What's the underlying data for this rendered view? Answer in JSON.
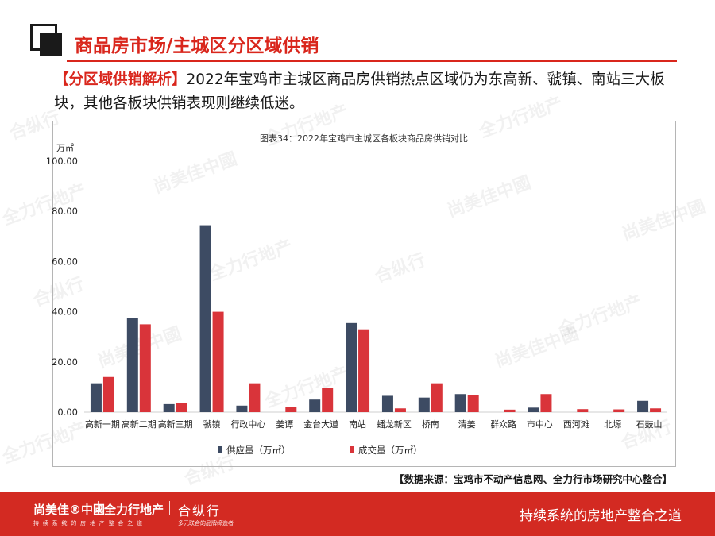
{
  "header": {
    "title": "商品房市场/主城区分区域供销"
  },
  "intro": {
    "tag": "【分区域供销解析】",
    "text": "2022年宝鸡市主城区商品房供销热点区域仍为东高新、虢镇、南站三大板块，其他各板块供销表现则继续低迷。"
  },
  "watermark": {
    "texts": [
      "尚美佳中國",
      "全力行地产",
      "合纵行"
    ]
  },
  "chart_data": {
    "type": "bar",
    "title": "图表34：2022年宝鸡市主城区各板块商品房供销对比",
    "unit": "万㎡",
    "ylim": [
      0,
      100
    ],
    "yticks": [
      "0.00",
      "20.00",
      "40.00",
      "60.00",
      "80.00",
      "100.00"
    ],
    "categories": [
      "高新一期",
      "高新二期",
      "高新三期",
      "虢镇",
      "行政中心",
      "姜谭",
      "金台大道",
      "南站",
      "蟠龙新区",
      "桥南",
      "清姜",
      "群众路",
      "市中心",
      "西河滩",
      "北塬",
      "石鼓山"
    ],
    "series": [
      {
        "name": "供应量（万㎡）",
        "color": "#3d4b63",
        "values": [
          11.5,
          37.5,
          3.2,
          74.5,
          2.6,
          0,
          5.0,
          35.5,
          6.5,
          5.8,
          7.2,
          0,
          1.8,
          0,
          0,
          4.5
        ]
      },
      {
        "name": "成交量（万㎡）",
        "color": "#d9343a",
        "values": [
          14.0,
          35.0,
          3.5,
          40.0,
          11.5,
          2.2,
          9.5,
          33.0,
          1.5,
          11.5,
          6.8,
          1.0,
          7.2,
          1.2,
          1.1,
          1.5
        ]
      }
    ],
    "legend_position": "bottom",
    "grid": false
  },
  "source": "【数据来源：宝鸡市不动产信息网、全力行市场研究中心整合】",
  "footer": {
    "brand1": "尚美佳®中國",
    "brand1_sub": "持 续 系 统 的 房 地 产 整 合 之 道",
    "brand2": "全力行地产",
    "brand3": "合纵行",
    "brand3_sub": "多元联合的品牌缔造者",
    "slogan": "持续系统的房地产整合之道"
  }
}
